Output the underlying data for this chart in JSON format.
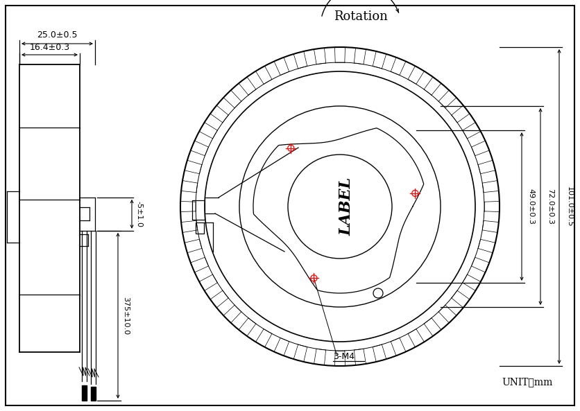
{
  "bg_color": "#ffffff",
  "line_color": "#000000",
  "crosshair_color": "#ff0000",
  "rotation_label": "Rotation",
  "label_text": "LABEL",
  "dim_3m4": "3-M4",
  "unit_text": "UNIT：mm",
  "dim_25": "25.0±0.5",
  "dim_164": "16.4±0.3",
  "dim_375": "375±10.0",
  "dim_5": "-5±1.0",
  "dim_49": "49.0±0.3",
  "dim_72": "72.0±0.3",
  "dim_101": "101.0±0.5"
}
